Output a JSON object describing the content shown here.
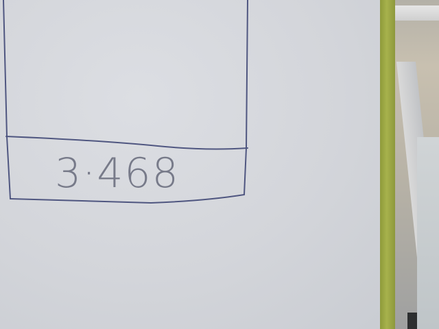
{
  "scene": {
    "description_text": "3·468"
  },
  "colors": {
    "board": "#d5d7dc",
    "ink": "#5a5f86",
    "frame": "#9aa543",
    "wall": "#bdb6a8"
  }
}
